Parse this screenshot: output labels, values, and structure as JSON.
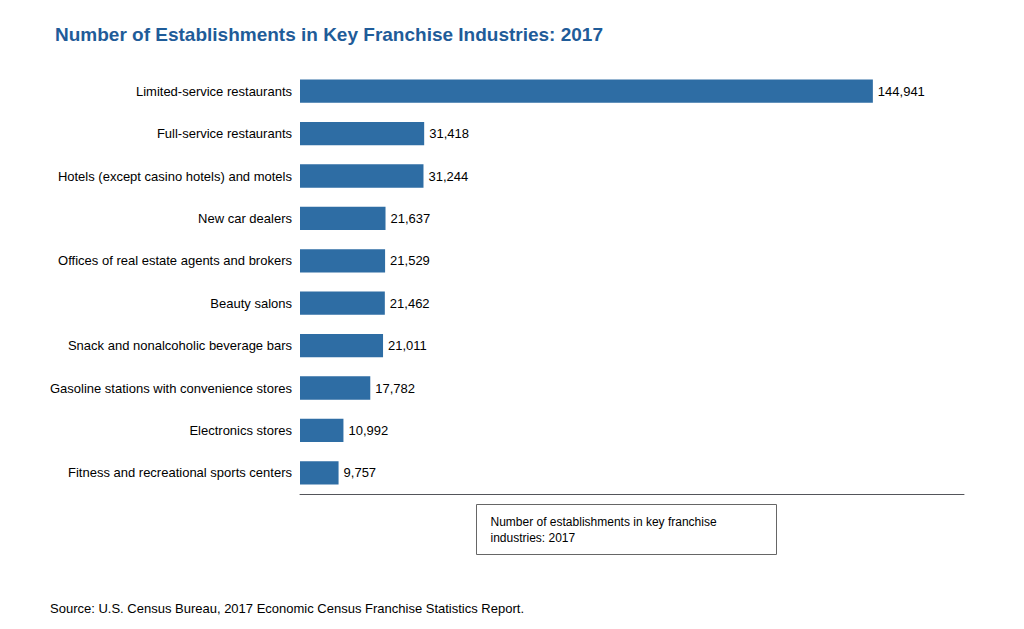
{
  "chart_data": {
    "type": "bar",
    "title": "Number of Establishments in Key Franchise Industries: 2017",
    "title_color": "#1F5C99",
    "orientation": "horizontal",
    "categories": [
      "Fitness and recreational sports centers",
      "Electronics stores",
      "Gasoline stations with convenience stores",
      "Snack and nonalcoholic beverage bars",
      "Beauty salons",
      "Offices of real estate agents and brokers",
      "New car dealers",
      "Hotels (except casino hotels) and motels",
      "Full-service restaurants",
      "Limited-service restaurants"
    ],
    "values": [
      9757,
      10992,
      17782,
      21011,
      21462,
      21529,
      21637,
      31244,
      31418,
      144941
    ],
    "value_labels": [
      "9,757",
      "10,992",
      "17,782",
      "21,011",
      "21,462",
      "21,529",
      "21,637",
      "31,244",
      "31,418",
      "144,941"
    ],
    "color": "#2E6DA4",
    "xlim": [
      0,
      168000
    ],
    "xticks": [],
    "tick_labels": "y",
    "grid": false,
    "data_labels": true,
    "annotations": [
      "Source: U.S. Census Bureau, 2017 Economic Census Franchise Statistics Report.",
      "Number of establishments in key franchise\nindustries: 2017"
    ]
  }
}
